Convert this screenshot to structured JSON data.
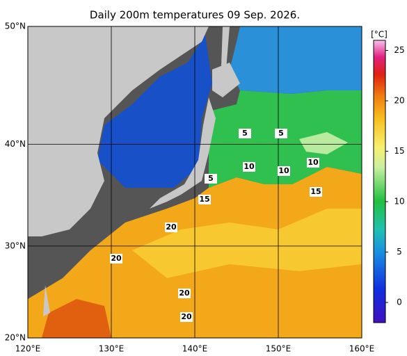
{
  "title": "Daily 200m temperatures 09 Sep. 2026.",
  "map": {
    "xlim": [
      120,
      160
    ],
    "ylim": [
      20,
      50
    ],
    "xticks": [
      {
        "value": 120,
        "label": "120°E"
      },
      {
        "value": 130,
        "label": "130°E"
      },
      {
        "value": 140,
        "label": "140°E"
      },
      {
        "value": 150,
        "label": "150°E"
      },
      {
        "value": 160,
        "label": "160°E"
      }
    ],
    "yticks": [
      {
        "value": 20,
        "label": "20°N"
      },
      {
        "value": 30,
        "label": "30°N"
      },
      {
        "value": 40,
        "label": "40°N"
      },
      {
        "value": 50,
        "label": "50°N"
      }
    ]
  },
  "colorbar": {
    "unit": "[°C]",
    "clim": [
      -2,
      26
    ],
    "ticks": [
      0,
      5,
      10,
      15,
      20,
      25
    ]
  },
  "contour_labels": [
    5,
    5,
    10,
    10,
    10,
    5,
    15,
    15,
    20,
    20,
    20,
    20
  ]
}
